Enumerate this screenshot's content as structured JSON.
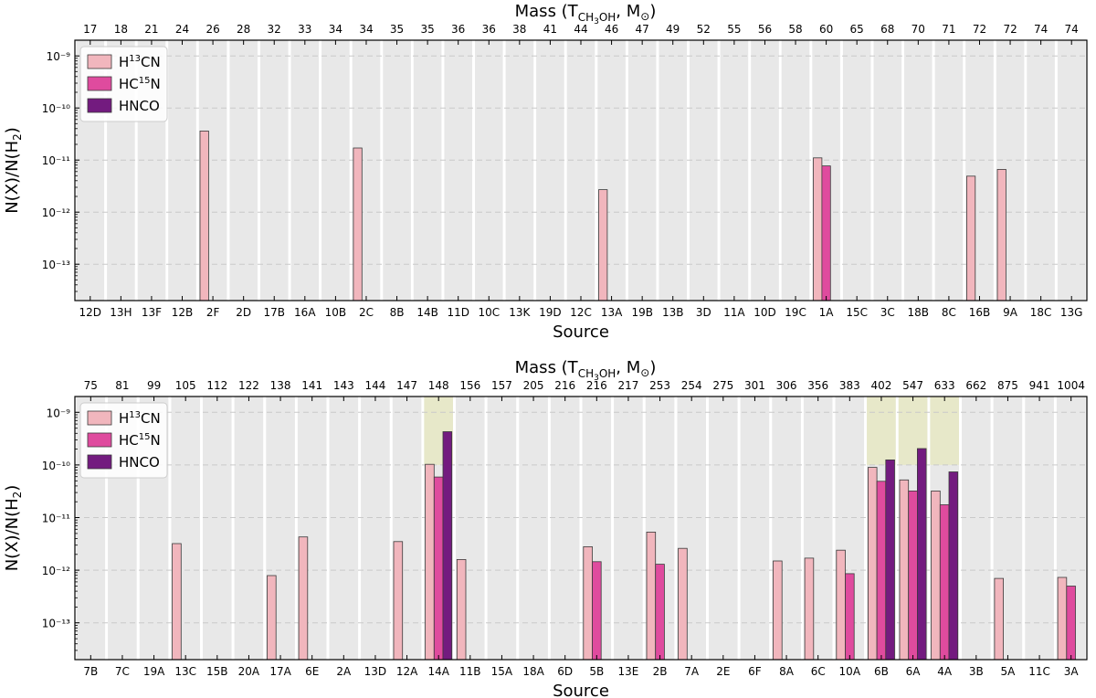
{
  "chart_data": [
    {
      "type": "bar",
      "panel": "top",
      "xlabel": "Source",
      "ylabel": "N(X)/N(H2)",
      "top_axis_label": "Mass (TCH3OH, M⊙)",
      "yscale": "log",
      "ylim": [
        2e-14,
        2e-09
      ],
      "categories": [
        "12D",
        "13H",
        "13F",
        "12B",
        "2F",
        "2D",
        "17B",
        "16A",
        "10B",
        "2C",
        "8B",
        "14B",
        "11D",
        "10C",
        "13K",
        "19D",
        "12C",
        "13A",
        "19B",
        "13B",
        "3D",
        "11A",
        "10D",
        "19C",
        "1A",
        "15C",
        "3C",
        "18B",
        "8C",
        "16B",
        "9A",
        "18C",
        "13G"
      ],
      "masses": [
        "17",
        "18",
        "21",
        "24",
        "26",
        "28",
        "32",
        "33",
        "34",
        "34",
        "35",
        "35",
        "36",
        "36",
        "38",
        "41",
        "44",
        "46",
        "47",
        "49",
        "52",
        "55",
        "56",
        "58",
        "60",
        "65",
        "68",
        "70",
        "71",
        "72",
        "72",
        "74",
        "74"
      ],
      "highlight": [],
      "series": [
        {
          "name": "H13CN",
          "color": "#f1b6bd",
          "values": [
            null,
            null,
            null,
            null,
            3.6e-11,
            null,
            null,
            null,
            null,
            1.7e-11,
            null,
            null,
            null,
            null,
            null,
            null,
            null,
            2.7e-12,
            null,
            null,
            null,
            null,
            null,
            null,
            1.1e-11,
            null,
            null,
            null,
            null,
            4.9e-12,
            6.6e-12,
            null,
            null
          ]
        },
        {
          "name": "HC15N",
          "color": "#df4b9e",
          "values": [
            null,
            null,
            null,
            null,
            null,
            null,
            null,
            null,
            null,
            null,
            null,
            null,
            null,
            null,
            null,
            null,
            null,
            null,
            null,
            null,
            null,
            null,
            null,
            null,
            7.7e-12,
            null,
            null,
            null,
            null,
            null,
            null,
            null,
            null
          ]
        },
        {
          "name": "HNCO",
          "color": "#731b7f",
          "values": [
            null,
            null,
            null,
            null,
            null,
            null,
            null,
            null,
            null,
            null,
            null,
            null,
            null,
            null,
            null,
            null,
            null,
            null,
            null,
            null,
            null,
            null,
            null,
            null,
            null,
            null,
            null,
            null,
            null,
            null,
            null,
            null,
            null
          ]
        }
      ],
      "yticks": [
        {
          "value": 1e-09,
          "label": "10⁻⁹"
        },
        {
          "value": 1e-10,
          "label": "10⁻¹⁰"
        },
        {
          "value": 1e-11,
          "label": "10⁻¹¹"
        },
        {
          "value": 1e-12,
          "label": "10⁻¹²"
        },
        {
          "value": 1e-13,
          "label": "10⁻¹³"
        }
      ],
      "legend": [
        "H¹³CN",
        "HC¹⁵N",
        "HNCO"
      ],
      "legend_position": "top-left"
    },
    {
      "type": "bar",
      "panel": "bottom",
      "xlabel": "Source",
      "ylabel": "N(X)/N(H2)",
      "top_axis_label": "Mass (TCH3OH, M⊙)",
      "yscale": "log",
      "ylim": [
        2e-14,
        2e-09
      ],
      "categories": [
        "7B",
        "7C",
        "19A",
        "13C",
        "15B",
        "20A",
        "17A",
        "6E",
        "2A",
        "13D",
        "12A",
        "14A",
        "11B",
        "15A",
        "18A",
        "6D",
        "5B",
        "13E",
        "2B",
        "7A",
        "2E",
        "6F",
        "8A",
        "6C",
        "10A",
        "6B",
        "6A",
        "4A",
        "3B",
        "5A",
        "11C",
        "3A"
      ],
      "masses": [
        "75",
        "81",
        "99",
        "105",
        "112",
        "122",
        "138",
        "141",
        "143",
        "144",
        "147",
        "148",
        "156",
        "157",
        "205",
        "216",
        "216",
        "217",
        "253",
        "254",
        "275",
        "301",
        "306",
        "356",
        "383",
        "402",
        "547",
        "633",
        "662",
        "875",
        "941",
        "1004"
      ],
      "highlight": [
        "14A",
        "6B",
        "6A",
        "4A"
      ],
      "series": [
        {
          "name": "H13CN",
          "color": "#f1b6bd",
          "values": [
            null,
            null,
            null,
            3.2e-12,
            null,
            null,
            7.9e-13,
            4.3e-12,
            null,
            null,
            3.5e-12,
            1.03e-10,
            1.6e-12,
            null,
            null,
            null,
            2.8e-12,
            null,
            5.3e-12,
            2.6e-12,
            null,
            null,
            1.5e-12,
            1.7e-12,
            2.4e-12,
            9e-11,
            5.2e-11,
            3.2e-11,
            null,
            7e-13,
            null,
            7.3e-13
          ]
        },
        {
          "name": "HC15N",
          "color": "#df4b9e",
          "values": [
            null,
            null,
            null,
            null,
            null,
            null,
            null,
            null,
            null,
            null,
            null,
            5.9e-11,
            null,
            null,
            null,
            null,
            1.45e-12,
            null,
            1.3e-12,
            null,
            null,
            null,
            null,
            null,
            8.6e-13,
            4.9e-11,
            3.2e-11,
            1.75e-11,
            null,
            null,
            null,
            5e-13
          ]
        },
        {
          "name": "HNCO",
          "color": "#731b7f",
          "values": [
            null,
            null,
            null,
            null,
            null,
            null,
            null,
            null,
            null,
            null,
            null,
            4.3e-10,
            null,
            null,
            null,
            null,
            null,
            null,
            null,
            null,
            null,
            null,
            null,
            null,
            null,
            1.25e-10,
            2.05e-10,
            7.4e-11,
            null,
            null,
            null,
            null
          ]
        }
      ],
      "yticks": [
        {
          "value": 1e-09,
          "label": "10⁻⁹"
        },
        {
          "value": 1e-10,
          "label": "10⁻¹⁰"
        },
        {
          "value": 1e-11,
          "label": "10⁻¹¹"
        },
        {
          "value": 1e-12,
          "label": "10⁻¹²"
        },
        {
          "value": 1e-13,
          "label": "10⁻¹³"
        }
      ],
      "legend": [
        "H¹³CN",
        "HC¹⁵N",
        "HNCO"
      ],
      "legend_position": "top-left"
    }
  ]
}
